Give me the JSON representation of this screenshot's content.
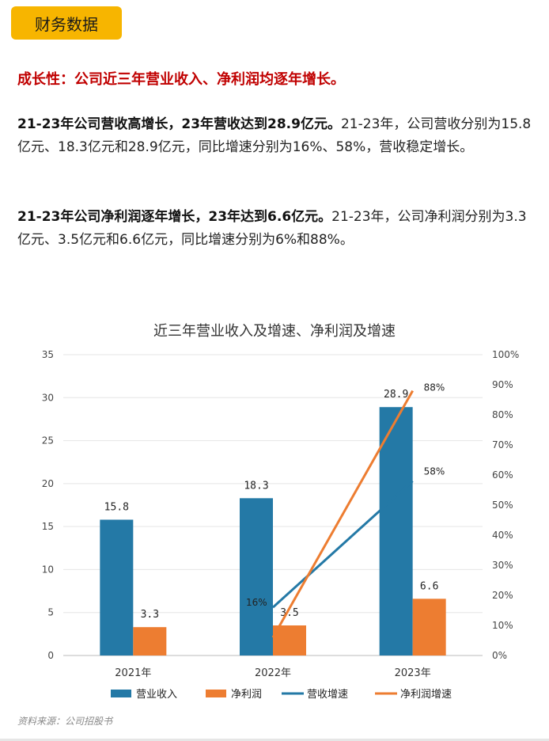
{
  "section_tag": "财务数据",
  "headline": "成长性：公司近三年营业收入、净利润均逐年增长。",
  "paragraphs": [
    {
      "bold": "21-23年公司营收高增长，23年营收达到28.9亿元。",
      "text": "21-23年，公司营收分别为15.8亿元、18.3亿元和28.9亿元，同比增速分别为16%、58%，营收稳定增长。"
    },
    {
      "bold": "21-23年公司净利润逐年增长，23年达到6.6亿元。",
      "text": "21-23年，公司净利润分别为3.3亿元、3.5亿元和6.6亿元，同比增速分别为6%和88%。"
    }
  ],
  "source": "资料来源：公司招股书",
  "colors": {
    "revenue": "#2479a6",
    "profit": "#ed7d31",
    "tag_bg": "#f7b500",
    "headline": "#c00000"
  },
  "chart_data": {
    "type": "bar",
    "title": "近三年营业收入及增速、净利润及增速",
    "categories": [
      "2021年",
      "2022年",
      "2023年"
    ],
    "series": [
      {
        "name": "营业收入",
        "kind": "bar",
        "axis": "left",
        "values": [
          15.8,
          18.3,
          28.9
        ],
        "labels": [
          "15.8",
          "18.3",
          "28.9"
        ]
      },
      {
        "name": "净利润",
        "kind": "bar",
        "axis": "left",
        "values": [
          3.3,
          3.5,
          6.6
        ],
        "labels": [
          "3.3",
          "3.5",
          "6.6"
        ]
      },
      {
        "name": "营收增速",
        "kind": "line",
        "axis": "right",
        "values": [
          null,
          16,
          58
        ],
        "labels": [
          "",
          "16%",
          "58%"
        ]
      },
      {
        "name": "净利润增速",
        "kind": "line",
        "axis": "right",
        "values": [
          null,
          6,
          88
        ],
        "labels": [
          "",
          "",
          "88%"
        ]
      }
    ],
    "left_axis": {
      "ylim": [
        0,
        35
      ],
      "ticks": [
        "0",
        "5",
        "10",
        "15",
        "20",
        "25",
        "30",
        "35"
      ]
    },
    "right_axis": {
      "ylim": [
        0,
        100
      ],
      "ticks": [
        "0%",
        "10%",
        "20%",
        "30%",
        "40%",
        "50%",
        "60%",
        "70%",
        "80%",
        "90%",
        "100%"
      ]
    },
    "grid": true,
    "legend_position": "bottom"
  }
}
